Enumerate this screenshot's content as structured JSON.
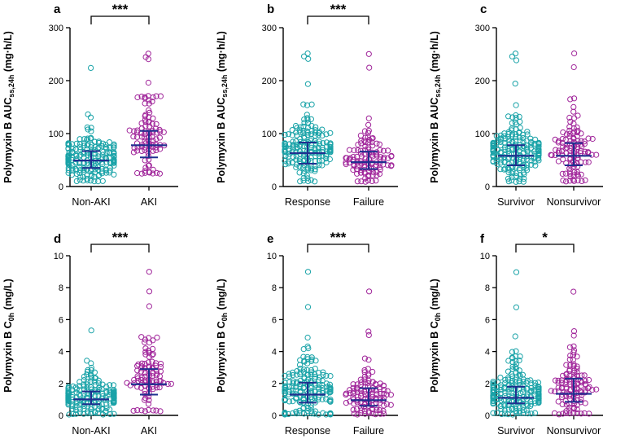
{
  "colors": {
    "group1": "#1aa3a8",
    "group2": "#a0259a",
    "summary": "#1f2f8f",
    "axis": "#000000"
  },
  "panels": [
    {
      "label": "a",
      "ylabel_main": "Polymyxin B AUC",
      "ylabel_sub": "ss,24h",
      "ylabel_unit": " (mg·h/L)",
      "ylim": [
        0,
        300
      ],
      "ticks": [
        0,
        100,
        200,
        300
      ],
      "tick_labels": [
        "0",
        "100",
        "200",
        "300"
      ],
      "categories": [
        "Non-AKI",
        "AKI"
      ],
      "significance": "***",
      "groups": [
        {
          "name": "Non-AKI",
          "median": 49,
          "q1": 35,
          "q3": 67,
          "min": 10,
          "max": 135,
          "n": 190,
          "outliers": [
            225
          ]
        },
        {
          "name": "AKI",
          "median": 78,
          "q1": 55,
          "q3": 105,
          "min": 25,
          "max": 170,
          "n": 95,
          "outliers": [
            195,
            240,
            245,
            250
          ]
        }
      ]
    },
    {
      "label": "b",
      "ylabel_main": "Polymyxin B AUC",
      "ylabel_sub": "ss,24h",
      "ylabel_unit": " (mg·h/L)",
      "ylim": [
        0,
        300
      ],
      "ticks": [
        0,
        100,
        200,
        300
      ],
      "tick_labels": [
        "0",
        "100",
        "200",
        "300"
      ],
      "categories": [
        "Response",
        "Failure"
      ],
      "significance": "***",
      "groups": [
        {
          "name": "Response",
          "median": 63,
          "q1": 43,
          "q3": 83,
          "min": 10,
          "max": 155,
          "n": 180,
          "outliers": [
            195,
            240,
            245,
            250
          ]
        },
        {
          "name": "Failure",
          "median": 46,
          "q1": 33,
          "q3": 66,
          "min": 10,
          "max": 165,
          "n": 110,
          "outliers": [
            225,
            250
          ]
        }
      ]
    },
    {
      "label": "c",
      "ylabel_main": "Polymyxin B AUC",
      "ylabel_sub": "ss,24h",
      "ylabel_unit": " (mg·h/L)",
      "ylim": [
        0,
        300
      ],
      "ticks": [
        0,
        100,
        200,
        300
      ],
      "tick_labels": [
        "0",
        "100",
        "200",
        "300"
      ],
      "categories": [
        "Survivor",
        "Nonsurvivor"
      ],
      "significance": "",
      "groups": [
        {
          "name": "Survivor",
          "median": 58,
          "q1": 40,
          "q3": 78,
          "min": 10,
          "max": 155,
          "n": 190,
          "outliers": [
            195,
            240,
            245,
            250
          ]
        },
        {
          "name": "Nonsurvivor",
          "median": 58,
          "q1": 40,
          "q3": 82,
          "min": 10,
          "max": 165,
          "n": 110,
          "outliers": [
            225,
            250
          ]
        }
      ]
    },
    {
      "label": "d",
      "ylabel_main": "Polymyxin B C",
      "ylabel_sub": "0h",
      "ylabel_unit": " (mg/L)",
      "ylim": [
        0,
        10
      ],
      "ticks": [
        0,
        2,
        4,
        6,
        8,
        10
      ],
      "tick_labels": [
        "0",
        "2",
        "4",
        "6",
        "8",
        "10"
      ],
      "categories": [
        "Non-AKI",
        "AKI"
      ],
      "significance": "***",
      "groups": [
        {
          "name": "Non-AKI",
          "median": 1.0,
          "q1": 0.7,
          "q3": 1.5,
          "min": 0.1,
          "max": 3.4,
          "n": 190,
          "outliers": [
            5.35
          ]
        },
        {
          "name": "AKI",
          "median": 1.95,
          "q1": 1.3,
          "q3": 2.9,
          "min": 0.3,
          "max": 4.9,
          "n": 95,
          "outliers": [
            6.8,
            7.8,
            9.0
          ]
        }
      ]
    },
    {
      "label": "e",
      "ylabel_main": "Polymyxin B C",
      "ylabel_sub": "0h",
      "ylabel_unit": " (mg/L)",
      "ylim": [
        0,
        10
      ],
      "ticks": [
        0,
        2,
        4,
        6,
        8,
        10
      ],
      "tick_labels": [
        "0",
        "2",
        "4",
        "6",
        "8",
        "10"
      ],
      "categories": [
        "Response",
        "Failure"
      ],
      "significance": "***",
      "groups": [
        {
          "name": "Response",
          "median": 1.3,
          "q1": 0.8,
          "q3": 2.05,
          "min": 0.1,
          "max": 4.3,
          "n": 180,
          "outliers": [
            4.9,
            6.8,
            9.0
          ]
        },
        {
          "name": "Failure",
          "median": 0.95,
          "q1": 0.6,
          "q3": 1.7,
          "min": 0.1,
          "max": 4.2,
          "n": 110,
          "outliers": [
            5.0,
            5.3,
            7.8
          ]
        }
      ]
    },
    {
      "label": "f",
      "ylabel_main": "Polymyxin B C",
      "ylabel_sub": "0h",
      "ylabel_unit": " (mg/L)",
      "ylim": [
        0,
        10
      ],
      "ticks": [
        0,
        2,
        4,
        6,
        8,
        10
      ],
      "tick_labels": [
        "0",
        "2",
        "4",
        "6",
        "8",
        "10"
      ],
      "categories": [
        "Survivor",
        "Nonsurvivor"
      ],
      "significance": "*",
      "groups": [
        {
          "name": "Survivor",
          "median": 1.1,
          "q1": 0.75,
          "q3": 1.8,
          "min": 0.1,
          "max": 4.0,
          "n": 190,
          "outliers": [
            4.9,
            6.8,
            9.0
          ]
        },
        {
          "name": "Nonsurvivor",
          "median": 1.35,
          "q1": 0.85,
          "q3": 2.3,
          "min": 0.1,
          "max": 4.3,
          "n": 110,
          "outliers": [
            5.0,
            5.3,
            7.8
          ]
        }
      ]
    }
  ],
  "chart_data": [
    {
      "type": "scatter",
      "title": "a",
      "xlabel": "",
      "ylabel": "Polymyxin B AUCss,24h (mg·h/L)",
      "categories": [
        "Non-AKI",
        "AKI"
      ],
      "ylim": [
        0,
        300
      ],
      "series": [
        {
          "name": "Non-AKI",
          "median": 49,
          "q1": 35,
          "q3": 67
        },
        {
          "name": "AKI",
          "median": 78,
          "q1": 55,
          "q3": 105
        }
      ],
      "annotation": "***"
    },
    {
      "type": "scatter",
      "title": "b",
      "xlabel": "",
      "ylabel": "Polymyxin B AUCss,24h (mg·h/L)",
      "categories": [
        "Response",
        "Failure"
      ],
      "ylim": [
        0,
        300
      ],
      "series": [
        {
          "name": "Response",
          "median": 63,
          "q1": 43,
          "q3": 83
        },
        {
          "name": "Failure",
          "median": 46,
          "q1": 33,
          "q3": 66
        }
      ],
      "annotation": "***"
    },
    {
      "type": "scatter",
      "title": "c",
      "xlabel": "",
      "ylabel": "Polymyxin B AUCss,24h (mg·h/L)",
      "categories": [
        "Survivor",
        "Nonsurvivor"
      ],
      "ylim": [
        0,
        300
      ],
      "series": [
        {
          "name": "Survivor",
          "median": 58,
          "q1": 40,
          "q3": 78
        },
        {
          "name": "Nonsurvivor",
          "median": 58,
          "q1": 40,
          "q3": 82
        }
      ],
      "annotation": ""
    },
    {
      "type": "scatter",
      "title": "d",
      "xlabel": "",
      "ylabel": "Polymyxin B C0h (mg/L)",
      "categories": [
        "Non-AKI",
        "AKI"
      ],
      "ylim": [
        0,
        10
      ],
      "series": [
        {
          "name": "Non-AKI",
          "median": 1.0,
          "q1": 0.7,
          "q3": 1.5
        },
        {
          "name": "AKI",
          "median": 1.95,
          "q1": 1.3,
          "q3": 2.9
        }
      ],
      "annotation": "***"
    },
    {
      "type": "scatter",
      "title": "e",
      "xlabel": "",
      "ylabel": "Polymyxin B C0h (mg/L)",
      "categories": [
        "Response",
        "Failure"
      ],
      "ylim": [
        0,
        10
      ],
      "series": [
        {
          "name": "Response",
          "median": 1.3,
          "q1": 0.8,
          "q3": 2.05
        },
        {
          "name": "Failure",
          "median": 0.95,
          "q1": 0.6,
          "q3": 1.7
        }
      ],
      "annotation": "***"
    },
    {
      "type": "scatter",
      "title": "f",
      "xlabel": "",
      "ylabel": "Polymyxin B C0h (mg/L)",
      "categories": [
        "Survivor",
        "Nonsurvivor"
      ],
      "ylim": [
        0,
        10
      ],
      "series": [
        {
          "name": "Survivor",
          "median": 1.1,
          "q1": 0.75,
          "q3": 1.8
        },
        {
          "name": "Nonsurvivor",
          "median": 1.35,
          "q1": 0.85,
          "q3": 2.3
        }
      ],
      "annotation": "*"
    }
  ]
}
